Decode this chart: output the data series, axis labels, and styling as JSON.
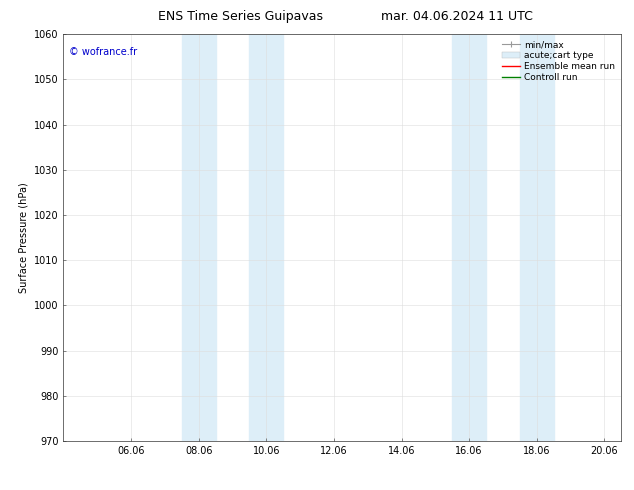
{
  "title_left": "ENS Time Series Guipavas",
  "title_right": "mar. 04.06.2024 11 UTC",
  "ylabel": "Surface Pressure (hPa)",
  "ylim": [
    970,
    1060
  ],
  "yticks": [
    970,
    980,
    990,
    1000,
    1010,
    1020,
    1030,
    1040,
    1050,
    1060
  ],
  "xtick_labels": [
    "06.06",
    "08.06",
    "10.06",
    "12.06",
    "14.06",
    "16.06",
    "18.06",
    "20.06"
  ],
  "xtick_positions": [
    2,
    4,
    6,
    8,
    10,
    12,
    14,
    16
  ],
  "xlim": [
    0,
    16.5
  ],
  "shaded_bands": [
    {
      "x_start": 3.5,
      "x_end": 4.5,
      "color": "#ddeef8"
    },
    {
      "x_start": 5.5,
      "x_end": 6.5,
      "color": "#ddeef8"
    },
    {
      "x_start": 11.5,
      "x_end": 12.5,
      "color": "#ddeef8"
    },
    {
      "x_start": 13.5,
      "x_end": 14.5,
      "color": "#ddeef8"
    }
  ],
  "watermark_text": "© wofrance.fr",
  "watermark_color": "#0000cc",
  "background_color": "#ffffff",
  "title_fontsize": 9,
  "axis_label_fontsize": 7,
  "tick_fontsize": 7,
  "watermark_fontsize": 7,
  "legend_fontsize": 6.5
}
